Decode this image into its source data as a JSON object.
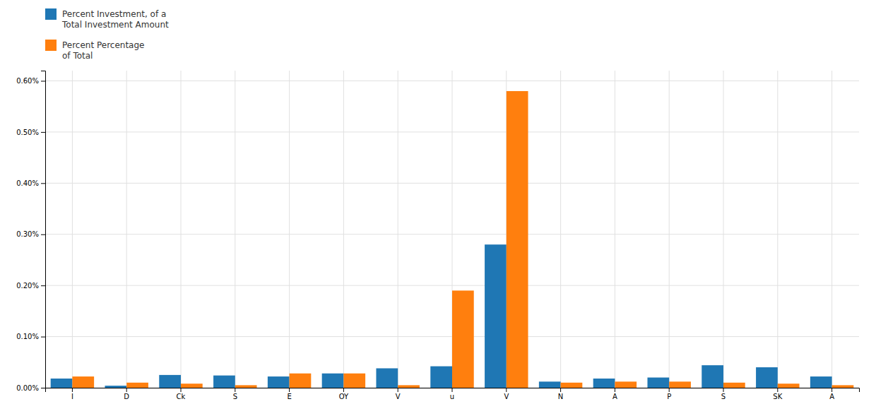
{
  "chart_data": {
    "type": "bar",
    "categories": [
      "I",
      "D",
      "Ck",
      "S",
      "E",
      "OY",
      "V",
      "u",
      "V",
      "N",
      "A",
      "P",
      "S",
      "SK",
      "A"
    ],
    "series": [
      {
        "name": "Percent Investment, of a\nTotal Investment Amount",
        "values": [
          0.018,
          0.004,
          0.025,
          0.024,
          0.022,
          0.028,
          0.038,
          0.042,
          0.28,
          0.012,
          0.018,
          0.02,
          0.044,
          0.04,
          0.022
        ]
      },
      {
        "name": "Percent Percentage\nof Total",
        "values": [
          0.022,
          0.01,
          0.008,
          0.005,
          0.028,
          0.028,
          0.005,
          0.19,
          0.58,
          0.01,
          0.012,
          0.012,
          0.01,
          0.008,
          0.005
        ]
      }
    ],
    "ylim": [
      0,
      0.62
    ],
    "yticks": [
      {
        "value": 0.0,
        "label": "0.00%"
      },
      {
        "value": 0.1,
        "label": "0.10%"
      },
      {
        "value": 0.2,
        "label": "0.20%"
      },
      {
        "value": 0.3,
        "label": "0.30%"
      },
      {
        "value": 0.4,
        "label": "0.40%"
      },
      {
        "value": 0.5,
        "label": "0.50%"
      },
      {
        "value": 0.6,
        "label": "0.60%"
      }
    ],
    "grid": true,
    "legend": "upper left"
  }
}
